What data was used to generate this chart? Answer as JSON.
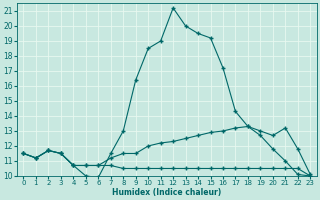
{
  "xlabel": "Humidex (Indice chaleur)",
  "xlim": [
    -0.5,
    23.5
  ],
  "ylim": [
    10,
    21.5
  ],
  "xticks": [
    0,
    1,
    2,
    3,
    4,
    5,
    6,
    7,
    8,
    9,
    10,
    11,
    12,
    13,
    14,
    15,
    16,
    17,
    18,
    19,
    20,
    21,
    22,
    23
  ],
  "yticks": [
    10,
    11,
    12,
    13,
    14,
    15,
    16,
    17,
    18,
    19,
    20,
    21
  ],
  "bg_color": "#c8e8e0",
  "line_color": "#006868",
  "grid_color": "#e8f8f0",
  "line_peak_x": [
    0,
    1,
    2,
    3,
    4,
    5,
    6,
    7,
    8,
    9,
    10,
    11,
    12,
    13,
    14,
    15,
    16,
    17,
    18,
    19,
    20,
    21,
    22,
    23
  ],
  "line_peak_y": [
    11.5,
    11.2,
    11.7,
    11.5,
    10.7,
    10.0,
    9.9,
    11.5,
    13.0,
    16.4,
    18.5,
    19.0,
    21.2,
    20.0,
    19.5,
    19.2,
    17.2,
    14.3,
    13.3,
    12.7,
    11.8,
    11.0,
    10.1,
    10.0
  ],
  "line_mid_x": [
    0,
    1,
    2,
    3,
    4,
    5,
    6,
    7,
    8,
    9,
    10,
    11,
    12,
    13,
    14,
    15,
    16,
    17,
    18,
    19,
    20,
    21,
    22,
    23
  ],
  "line_mid_y": [
    11.5,
    11.2,
    11.7,
    11.5,
    10.7,
    10.7,
    10.7,
    11.2,
    11.5,
    11.5,
    12.0,
    12.2,
    12.3,
    12.5,
    12.7,
    12.9,
    13.0,
    13.2,
    13.3,
    13.0,
    12.7,
    13.2,
    11.8,
    10.1
  ],
  "line_flat_x": [
    0,
    1,
    2,
    3,
    4,
    5,
    6,
    7,
    8,
    9,
    10,
    11,
    12,
    13,
    14,
    15,
    16,
    17,
    18,
    19,
    20,
    21,
    22,
    23
  ],
  "line_flat_y": [
    11.5,
    11.2,
    11.7,
    11.5,
    10.7,
    10.7,
    10.7,
    10.7,
    10.5,
    10.5,
    10.5,
    10.5,
    10.5,
    10.5,
    10.5,
    10.5,
    10.5,
    10.5,
    10.5,
    10.5,
    10.5,
    10.5,
    10.5,
    10.0
  ]
}
